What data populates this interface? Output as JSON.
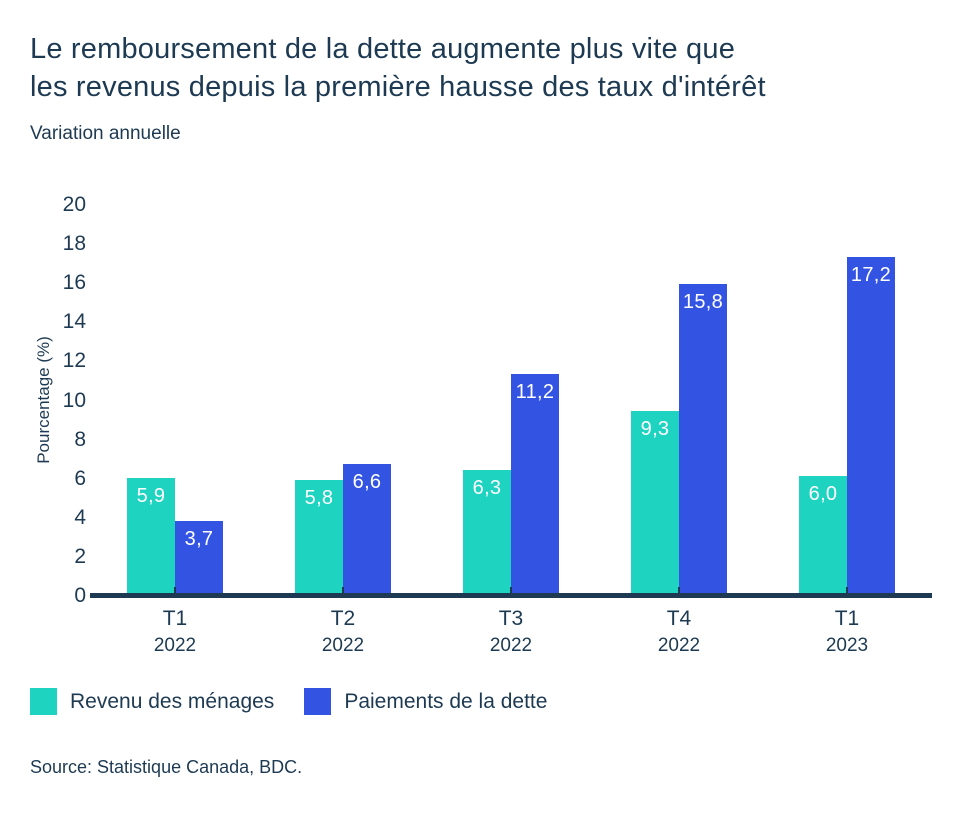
{
  "header": {
    "title_lines": [
      "Le remboursement de la dette augmente plus vite que",
      "les revenus depuis la première hausse des taux d'intérêt"
    ],
    "subtitle": "Variation annuelle"
  },
  "colors": {
    "text": "#1D3A52",
    "axis": "#1D3A52",
    "background": "#FFFFFF",
    "series_income": "#1FD3C1",
    "series_debt": "#3354E3"
  },
  "chart_data": {
    "type": "bar",
    "title": "Le remboursement de la dette augmente plus vite que les revenus depuis la première hausse des taux d'intérêt",
    "subtitle": "Variation annuelle",
    "ylabel": "Pourcentage (%)",
    "xlabel": "",
    "ylim": [
      0,
      20
    ],
    "ytick_step": 2,
    "grid": false,
    "legend_position": "bottom-left",
    "categories": [
      {
        "quarter": "T1",
        "year": "2022"
      },
      {
        "quarter": "T2",
        "year": "2022"
      },
      {
        "quarter": "T3",
        "year": "2022"
      },
      {
        "quarter": "T4",
        "year": "2022"
      },
      {
        "quarter": "T1",
        "year": "2023"
      }
    ],
    "series": [
      {
        "name": "Revenu des ménages",
        "color": "#1FD3C1",
        "values": [
          5.9,
          5.8,
          6.3,
          9.3,
          6.0
        ],
        "labels": [
          "5,9",
          "5,8",
          "6,3",
          "9,3",
          "6,0"
        ]
      },
      {
        "name": "Paiements de la dette",
        "color": "#3354E3",
        "values": [
          3.7,
          6.6,
          11.2,
          15.8,
          17.2
        ],
        "labels": [
          "3,7",
          "6,6",
          "11,2",
          "15,8",
          "17,2"
        ]
      }
    ]
  },
  "footer": {
    "source": "Source: Statistique Canada, BDC."
  }
}
